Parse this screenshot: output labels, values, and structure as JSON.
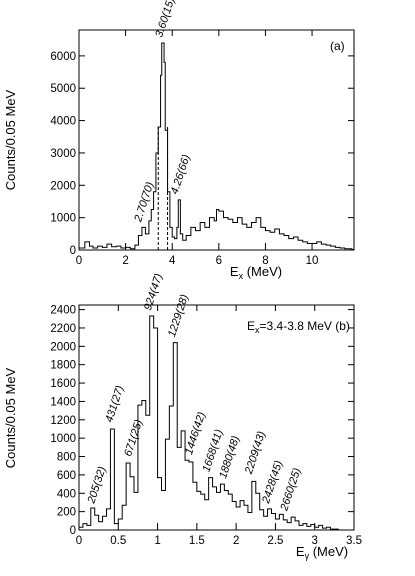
{
  "chart_data": [
    {
      "type": "histogram",
      "panel": "(a)",
      "xlabel": "E_x (MeV)",
      "ylabel": "Counts/0.05 MeV",
      "xlim": [
        0,
        11.8
      ],
      "ylim": [
        0,
        6800
      ],
      "xticks": [
        0,
        2,
        4,
        6,
        8,
        10
      ],
      "yticks": [
        0,
        1000,
        2000,
        3000,
        4000,
        5000,
        6000
      ],
      "gate_lines": [
        3.4,
        3.8
      ],
      "peak_labels": [
        {
          "text": "3.60(15)",
          "x": 3.6,
          "y": 6400
        },
        {
          "text": "4.26(66)",
          "x": 4.26,
          "y": 1550
        },
        {
          "text": "2.70(70)",
          "x": 2.7,
          "y": 700
        }
      ],
      "points": [
        [
          0.0,
          60
        ],
        [
          0.25,
          250
        ],
        [
          0.45,
          120
        ],
        [
          0.6,
          60
        ],
        [
          0.8,
          120
        ],
        [
          1.0,
          80
        ],
        [
          1.2,
          180
        ],
        [
          1.4,
          100
        ],
        [
          1.6,
          120
        ],
        [
          1.8,
          60
        ],
        [
          2.0,
          80
        ],
        [
          2.2,
          40
        ],
        [
          2.4,
          150
        ],
        [
          2.55,
          450
        ],
        [
          2.7,
          700
        ],
        [
          2.85,
          500
        ],
        [
          3.0,
          900
        ],
        [
          3.1,
          1250
        ],
        [
          3.2,
          1800
        ],
        [
          3.3,
          3000
        ],
        [
          3.4,
          3800
        ],
        [
          3.5,
          5400
        ],
        [
          3.55,
          6400
        ],
        [
          3.6,
          6400
        ],
        [
          3.65,
          5800
        ],
        [
          3.7,
          3700
        ],
        [
          3.8,
          1800
        ],
        [
          3.9,
          700
        ],
        [
          4.0,
          400
        ],
        [
          4.1,
          350
        ],
        [
          4.2,
          700
        ],
        [
          4.26,
          1550
        ],
        [
          4.35,
          500
        ],
        [
          4.45,
          300
        ],
        [
          4.6,
          450
        ],
        [
          4.8,
          700
        ],
        [
          5.0,
          600
        ],
        [
          5.2,
          850
        ],
        [
          5.4,
          700
        ],
        [
          5.6,
          1000
        ],
        [
          5.8,
          900
        ],
        [
          5.9,
          1250
        ],
        [
          6.0,
          1200
        ],
        [
          6.2,
          1000
        ],
        [
          6.4,
          950
        ],
        [
          6.6,
          850
        ],
        [
          6.8,
          1000
        ],
        [
          7.0,
          800
        ],
        [
          7.2,
          700
        ],
        [
          7.4,
          850
        ],
        [
          7.6,
          1000
        ],
        [
          7.8,
          700
        ],
        [
          8.0,
          600
        ],
        [
          8.2,
          550
        ],
        [
          8.4,
          650
        ],
        [
          8.6,
          500
        ],
        [
          8.8,
          450
        ],
        [
          9.0,
          350
        ],
        [
          9.2,
          400
        ],
        [
          9.4,
          300
        ],
        [
          9.6,
          250
        ],
        [
          9.8,
          200
        ],
        [
          10.0,
          200
        ],
        [
          10.2,
          250
        ],
        [
          10.4,
          180
        ],
        [
          10.6,
          150
        ],
        [
          10.8,
          120
        ],
        [
          11.0,
          80
        ],
        [
          11.2,
          60
        ],
        [
          11.4,
          40
        ],
        [
          11.7,
          20
        ]
      ]
    },
    {
      "type": "histogram",
      "panel": "(b)",
      "annotation": "E_x=3.4-3.8 MeV",
      "xlabel": "E_γ (MeV)",
      "ylabel": "Counts/0.05 MeV",
      "xlim": [
        0,
        3.5
      ],
      "ylim": [
        0,
        2450
      ],
      "xticks": [
        0,
        0.5,
        1,
        1.5,
        2,
        2.5,
        3,
        3.5
      ],
      "yticks": [
        0,
        200,
        400,
        600,
        800,
        1000,
        1200,
        1400,
        1600,
        1800,
        2000,
        2200,
        2400
      ],
      "peak_labels": [
        {
          "text": "205(32)",
          "x": 0.205,
          "y": 230
        },
        {
          "text": "431(27)",
          "x": 0.431,
          "y": 1110
        },
        {
          "text": "671(25)",
          "x": 0.671,
          "y": 740
        },
        {
          "text": "924(47)",
          "x": 0.924,
          "y": 2330
        },
        {
          "text": "1229(28)",
          "x": 1.229,
          "y": 2040
        },
        {
          "text": "1446(42)",
          "x": 1.446,
          "y": 760
        },
        {
          "text": "1668(41)",
          "x": 1.668,
          "y": 570
        },
        {
          "text": "1880(48)",
          "x": 1.88,
          "y": 500
        },
        {
          "text": "2209(43)",
          "x": 2.209,
          "y": 550
        },
        {
          "text": "2428(45)",
          "x": 2.428,
          "y": 230
        },
        {
          "text": "2660(25)",
          "x": 2.66,
          "y": 150
        }
      ],
      "points": [
        [
          0.0,
          30
        ],
        [
          0.05,
          70
        ],
        [
          0.1,
          50
        ],
        [
          0.15,
          240
        ],
        [
          0.2,
          160
        ],
        [
          0.25,
          90
        ],
        [
          0.3,
          150
        ],
        [
          0.35,
          230
        ],
        [
          0.4,
          1100
        ],
        [
          0.45,
          70
        ],
        [
          0.5,
          120
        ],
        [
          0.55,
          270
        ],
        [
          0.6,
          730
        ],
        [
          0.65,
          580
        ],
        [
          0.7,
          410
        ],
        [
          0.75,
          1360
        ],
        [
          0.8,
          1410
        ],
        [
          0.85,
          1250
        ],
        [
          0.9,
          2330
        ],
        [
          0.95,
          2200
        ],
        [
          1.0,
          570
        ],
        [
          1.05,
          430
        ],
        [
          1.1,
          990
        ],
        [
          1.15,
          1350
        ],
        [
          1.2,
          2040
        ],
        [
          1.25,
          900
        ],
        [
          1.3,
          1080
        ],
        [
          1.35,
          760
        ],
        [
          1.4,
          740
        ],
        [
          1.45,
          520
        ],
        [
          1.5,
          420
        ],
        [
          1.55,
          390
        ],
        [
          1.6,
          330
        ],
        [
          1.65,
          570
        ],
        [
          1.7,
          470
        ],
        [
          1.75,
          410
        ],
        [
          1.8,
          500
        ],
        [
          1.85,
          430
        ],
        [
          1.9,
          390
        ],
        [
          1.95,
          310
        ],
        [
          2.0,
          250
        ],
        [
          2.05,
          320
        ],
        [
          2.1,
          270
        ],
        [
          2.15,
          190
        ],
        [
          2.2,
          530
        ],
        [
          2.25,
          400
        ],
        [
          2.3,
          220
        ],
        [
          2.35,
          150
        ],
        [
          2.4,
          230
        ],
        [
          2.45,
          180
        ],
        [
          2.5,
          120
        ],
        [
          2.55,
          170
        ],
        [
          2.6,
          110
        ],
        [
          2.65,
          80
        ],
        [
          2.7,
          140
        ],
        [
          2.75,
          100
        ],
        [
          2.8,
          50
        ],
        [
          2.85,
          70
        ],
        [
          2.9,
          40
        ],
        [
          2.95,
          60
        ],
        [
          3.0,
          30
        ],
        [
          3.05,
          50
        ],
        [
          3.1,
          20
        ],
        [
          3.15,
          30
        ],
        [
          3.2,
          10
        ],
        [
          3.25,
          10
        ],
        [
          3.3,
          0
        ],
        [
          3.4,
          0
        ]
      ]
    }
  ]
}
